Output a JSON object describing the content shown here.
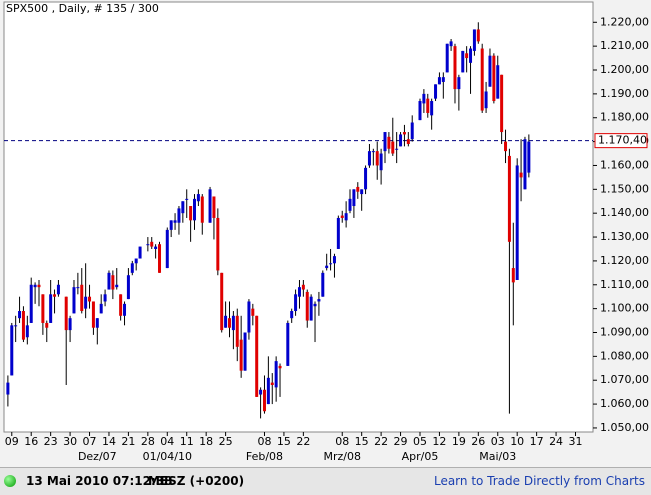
{
  "chart_data": {
    "type": "candlestick",
    "title": "SPX500 , Daily, # 135 / 300",
    "up_color": "#0000cc",
    "down_color": "#e00000",
    "xlim": [
      -1,
      150.5
    ],
    "ylim": [
      1048.3,
      1228.5
    ],
    "yticks": [
      {
        "value": 1050,
        "label": "1.050,00"
      },
      {
        "value": 1060,
        "label": "1.060,00"
      },
      {
        "value": 1070,
        "label": "1.070,00"
      },
      {
        "value": 1080,
        "label": "1.080,00"
      },
      {
        "value": 1090,
        "label": "1.090,00"
      },
      {
        "value": 1100,
        "label": "1.100,00"
      },
      {
        "value": 1110,
        "label": "1.110,00"
      },
      {
        "value": 1120,
        "label": "1.120,00"
      },
      {
        "value": 1130,
        "label": "1.130,00"
      },
      {
        "value": 1140,
        "label": "1.140,00"
      },
      {
        "value": 1150,
        "label": "1.150,00"
      },
      {
        "value": 1160,
        "label": "1.160,00"
      },
      {
        "value": 1170,
        "label": "1.170,00"
      },
      {
        "value": 1180,
        "label": "1.180,00"
      },
      {
        "value": 1190,
        "label": "1.190,00"
      },
      {
        "value": 1200,
        "label": "1.200,00"
      },
      {
        "value": 1210,
        "label": "1.210,00"
      },
      {
        "value": 1220,
        "label": "1.220,00"
      }
    ],
    "xticks": [
      {
        "value": 1,
        "label": "09"
      },
      {
        "value": 6,
        "label": "16"
      },
      {
        "value": 11,
        "label": "23"
      },
      {
        "value": 16,
        "label": "30"
      },
      {
        "value": 21,
        "label": "07"
      },
      {
        "value": 26,
        "label": "14"
      },
      {
        "value": 31,
        "label": "21"
      },
      {
        "value": 36,
        "label": "28"
      },
      {
        "value": 41,
        "label": "04"
      },
      {
        "value": 46,
        "label": "11"
      },
      {
        "value": 51,
        "label": "18"
      },
      {
        "value": 56,
        "label": "25"
      },
      {
        "value": 66,
        "label": "08"
      },
      {
        "value": 71,
        "label": "15"
      },
      {
        "value": 76,
        "label": "22"
      },
      {
        "value": 86,
        "label": "08"
      },
      {
        "value": 91,
        "label": "15"
      },
      {
        "value": 96,
        "label": "22"
      },
      {
        "value": 101,
        "label": "29"
      },
      {
        "value": 106,
        "label": "05"
      },
      {
        "value": 111,
        "label": "12"
      },
      {
        "value": 116,
        "label": "19"
      },
      {
        "value": 121,
        "label": "26"
      },
      {
        "value": 126,
        "label": "03"
      },
      {
        "value": 131,
        "label": "10"
      },
      {
        "value": 136,
        "label": "17"
      },
      {
        "value": 141,
        "label": "24"
      },
      {
        "value": 146,
        "label": "31"
      }
    ],
    "xlabels2": [
      {
        "value": 23,
        "label": "Dez/07"
      },
      {
        "value": 41,
        "label": "01/04/10"
      },
      {
        "value": 66,
        "label": "Feb/08"
      },
      {
        "value": 86,
        "label": "Mrz/08"
      },
      {
        "value": 106,
        "label": "Apr/05"
      },
      {
        "value": 126,
        "label": "Mai/03"
      }
    ],
    "price_line": {
      "value": 1170.4,
      "label": "1.170,40",
      "color": "#000080"
    },
    "ohlc": [
      [
        1064,
        1072,
        1059,
        1069
      ],
      [
        1072,
        1094,
        1072,
        1093
      ],
      [
        1093,
        1097,
        1086,
        1093
      ],
      [
        1096,
        1105,
        1094,
        1099
      ],
      [
        1099,
        1101,
        1086,
        1087
      ],
      [
        1088,
        1097,
        1085,
        1093
      ],
      [
        1094,
        1113,
        1094,
        1110
      ],
      [
        1109,
        1111,
        1102,
        1110
      ],
      [
        1110,
        1112,
        1101,
        1109
      ],
      [
        1106,
        1106,
        1089,
        1094
      ],
      [
        1094,
        1095,
        1086,
        1092
      ],
      [
        1094,
        1112,
        1094,
        1106
      ],
      [
        1106,
        1108,
        1098,
        1105
      ],
      [
        1106,
        1112,
        1105,
        1110
      ],
      null,
      [
        1105,
        1105,
        1068,
        1091
      ],
      [
        1091,
        1097,
        1086,
        1096
      ],
      [
        1098,
        1112,
        1098,
        1109
      ],
      [
        1109,
        1115,
        1106,
        1109
      ],
      [
        1110,
        1117,
        1098,
        1099
      ],
      [
        1100,
        1119,
        1096,
        1105
      ],
      [
        1105,
        1110,
        1100,
        1103
      ],
      [
        1103,
        1103,
        1089,
        1092
      ],
      [
        1092,
        1096,
        1085,
        1096
      ],
      [
        1098,
        1106,
        1098,
        1102
      ],
      [
        1103,
        1108,
        1101,
        1106
      ],
      [
        1108,
        1116,
        1108,
        1115
      ],
      [
        1114,
        1116,
        1104,
        1108
      ],
      [
        1109,
        1117,
        1108,
        1110
      ],
      [
        1106,
        1106,
        1095,
        1097
      ],
      [
        1097,
        1103,
        1093,
        1102
      ],
      [
        1104,
        1117,
        1104,
        1114
      ],
      [
        1115,
        1120,
        1114,
        1119
      ],
      [
        1119,
        1121,
        1116,
        1121
      ],
      [
        1121,
        1126,
        1121,
        1126
      ],
      null,
      [
        1127,
        1130,
        1124,
        1127
      ],
      [
        1128,
        1130,
        1125,
        1126
      ],
      [
        1125,
        1127,
        1121,
        1126
      ],
      [
        1127,
        1128,
        1115,
        1115
      ],
      null,
      [
        1117,
        1134,
        1117,
        1133
      ],
      [
        1133,
        1137,
        1130,
        1137
      ],
      [
        1136,
        1140,
        1133,
        1137
      ],
      [
        1136,
        1143,
        1131,
        1142
      ],
      [
        1140,
        1145,
        1136,
        1145
      ],
      [
        1146,
        1150,
        1138,
        1146
      ],
      [
        1143,
        1143,
        1128,
        1137
      ],
      [
        1137,
        1148,
        1133,
        1146
      ],
      [
        1145,
        1150,
        1143,
        1148
      ],
      [
        1147,
        1148,
        1131,
        1136
      ],
      null,
      [
        1136,
        1151,
        1136,
        1150
      ],
      [
        1147,
        1147,
        1129,
        1138
      ],
      [
        1138,
        1142,
        1114,
        1116
      ],
      [
        1115,
        1115,
        1090,
        1091
      ],
      [
        1092,
        1103,
        1092,
        1097
      ],
      [
        1096,
        1103,
        1088,
        1092
      ],
      [
        1091,
        1099,
        1083,
        1097
      ],
      [
        1097,
        1100,
        1078,
        1084
      ],
      [
        1087,
        1097,
        1071,
        1074
      ],
      [
        1074,
        1090,
        1074,
        1090
      ],
      [
        1090,
        1104,
        1087,
        1103
      ],
      [
        1100,
        1102,
        1093,
        1097
      ],
      [
        1097,
        1097,
        1063,
        1063
      ],
      [
        1064,
        1067,
        1054,
        1066
      ],
      [
        1066,
        1072,
        1056,
        1057
      ],
      [
        1060,
        1080,
        1060,
        1071
      ],
      [
        1069,
        1073,
        1060,
        1068
      ],
      [
        1067,
        1080,
        1061,
        1078
      ],
      [
        1076,
        1077,
        1063,
        1075
      ],
      null,
      [
        1076,
        1095,
        1076,
        1094
      ],
      [
        1096,
        1100,
        1094,
        1099
      ],
      [
        1099,
        1108,
        1097,
        1106
      ],
      [
        1105,
        1112,
        1100,
        1109
      ],
      [
        1110,
        1112,
        1105,
        1108
      ],
      [
        1107,
        1108,
        1092,
        1095
      ],
      [
        1095,
        1106,
        1095,
        1105
      ],
      [
        1101,
        1103,
        1086,
        1102
      ],
      [
        1103,
        1107,
        1097,
        1104
      ],
      [
        1105,
        1116,
        1105,
        1115
      ],
      [
        1117,
        1123,
        1116,
        1118
      ],
      [
        1119,
        1125,
        1116,
        1119
      ],
      [
        1119,
        1123,
        1113,
        1122
      ],
      [
        1125,
        1139,
        1125,
        1138
      ],
      [
        1139,
        1141,
        1136,
        1138
      ],
      [
        1137,
        1145,
        1134,
        1140
      ],
      [
        1141,
        1150,
        1140,
        1146
      ],
      [
        1143,
        1150,
        1138,
        1150
      ],
      [
        1151,
        1153,
        1146,
        1149
      ],
      [
        1148,
        1150,
        1141,
        1150
      ],
      [
        1150,
        1160,
        1148,
        1159
      ],
      [
        1160,
        1169,
        1159,
        1166
      ],
      [
        1166,
        1167,
        1160,
        1166
      ],
      [
        1166,
        1170,
        1154,
        1160
      ],
      [
        1158,
        1167,
        1152,
        1165
      ],
      [
        1166,
        1174,
        1161,
        1174
      ],
      [
        1172,
        1174,
        1165,
        1167
      ],
      [
        1170,
        1180,
        1164,
        1165
      ],
      [
        1167,
        1174,
        1161,
        1167
      ],
      [
        1168,
        1174,
        1168,
        1173
      ],
      [
        1174,
        1177,
        1168,
        1173
      ],
      [
        1171,
        1174,
        1168,
        1169
      ],
      [
        1171,
        1181,
        1170,
        1178
      ],
      null,
      [
        1179,
        1188,
        1179,
        1187
      ],
      [
        1186,
        1192,
        1182,
        1190
      ],
      [
        1188,
        1190,
        1180,
        1182
      ],
      [
        1181,
        1188,
        1175,
        1187
      ],
      [
        1188,
        1194,
        1187,
        1194
      ],
      [
        1194,
        1199,
        1194,
        1197
      ],
      [
        1195,
        1199,
        1188,
        1197
      ],
      [
        1199,
        1211,
        1199,
        1211
      ],
      [
        1210,
        1213,
        1208,
        1212
      ],
      [
        1210,
        1211,
        1186,
        1192
      ],
      [
        1192,
        1198,
        1183,
        1197
      ],
      [
        1199,
        1208,
        1199,
        1208
      ],
      [
        1207,
        1210,
        1199,
        1205
      ],
      [
        1203,
        1210,
        1190,
        1209
      ],
      [
        1208,
        1217,
        1206,
        1217
      ],
      [
        1217,
        1220,
        1211,
        1212
      ],
      [
        1209,
        1211,
        1182,
        1183
      ],
      [
        1184,
        1195,
        1182,
        1191
      ],
      [
        1193,
        1209,
        1193,
        1206
      ],
      [
        1206,
        1207,
        1186,
        1187
      ],
      [
        1188,
        1206,
        1188,
        1202
      ],
      [
        1198,
        1198,
        1169,
        1174
      ],
      [
        1170,
        1175,
        1161,
        1166
      ],
      [
        1164,
        1167,
        1056,
        1128
      ],
      [
        1117,
        1136,
        1093,
        1111
      ],
      [
        1112,
        1163,
        1112,
        1160
      ],
      [
        1157,
        1171,
        1145,
        1155
      ],
      [
        1150,
        1172,
        1150,
        1171
      ],
      [
        1157,
        1173,
        1155,
        1170
      ]
    ]
  },
  "status_bar": {
    "datetime": "13 Mai 2010 07:12:38",
    "timezone": "MESZ (+0200)",
    "link": "Learn to Trade Directly from Charts"
  }
}
